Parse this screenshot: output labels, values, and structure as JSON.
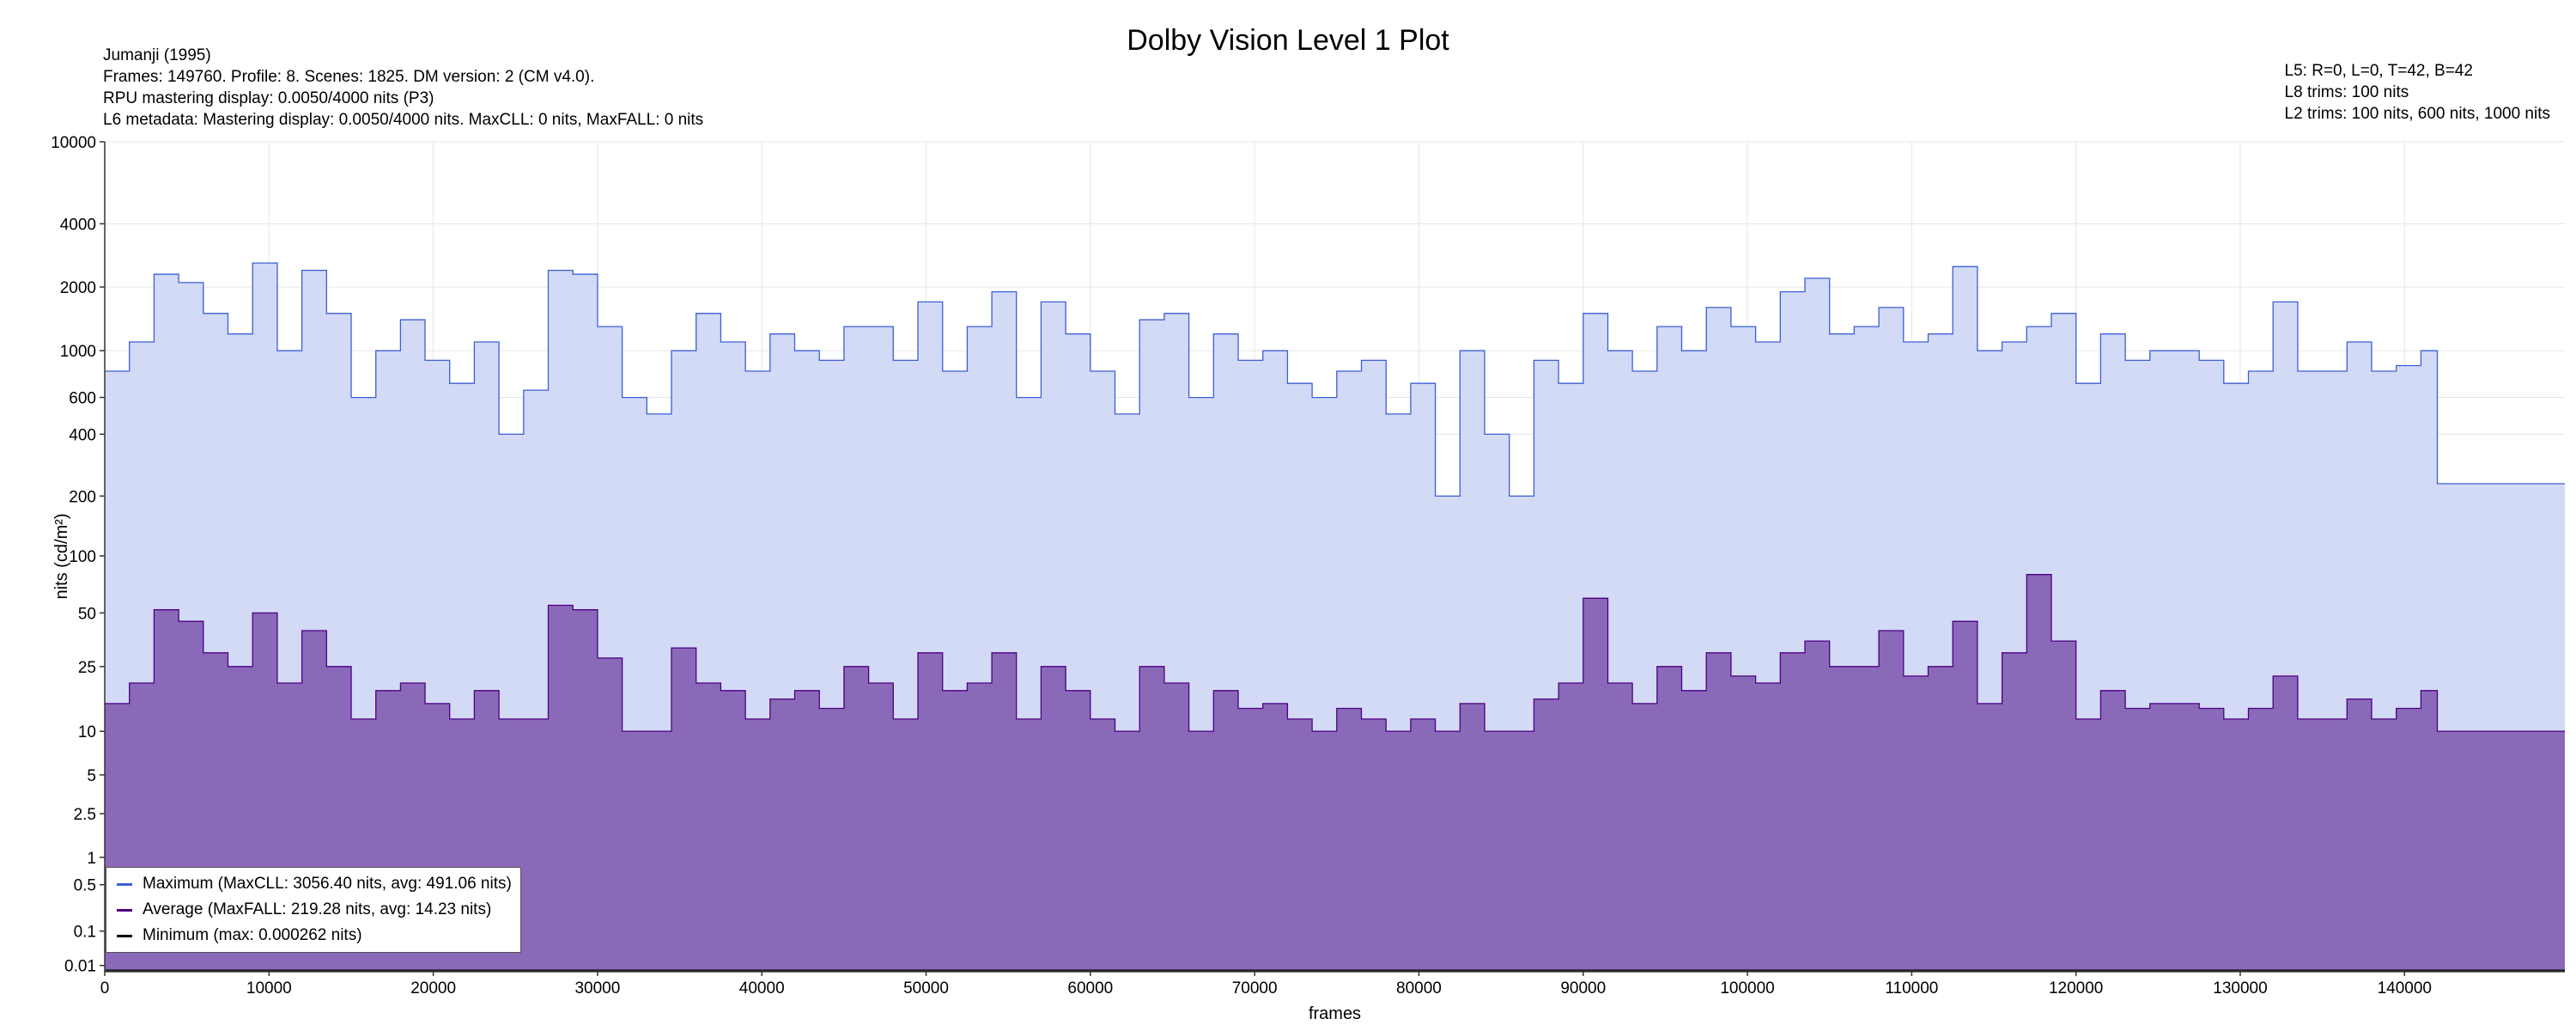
{
  "header": {
    "title": "Dolby Vision Level 1 Plot",
    "left_lines": [
      "Jumanji (1995)",
      "Frames: 149760. Profile: 8. Scenes: 1825. DM version: 2 (CM v4.0).",
      "RPU mastering display: 0.0050/4000 nits  (P3)",
      "L6 metadata: Mastering display: 0.0050/4000 nits. MaxCLL: 0 nits, MaxFALL: 0 nits"
    ],
    "right_lines": [
      "L5: R=0, L=0, T=42, B=42",
      "L8 trims: 100 nits",
      "L2 trims: 100 nits, 600 nits, 1000 nits"
    ]
  },
  "legend": {
    "items": [
      {
        "label": "Maximum (MaxCLL: 3056.40 nits, avg: 491.06 nits)",
        "color": "#3b5fd6"
      },
      {
        "label": "Average (MaxFALL: 219.28 nits, avg: 14.23 nits)",
        "color": "#4b0082"
      },
      {
        "label": "Minimum (max: 0.000262 nits)",
        "color": "#000000"
      }
    ]
  },
  "colors": {
    "max_line": "#3b5fd6",
    "max_fill": "#d3daf6",
    "avg_line": "#4b0082",
    "avg_fill": "#8b69b9",
    "min_line": "#000000",
    "grid": "#e6e6e6"
  },
  "chart_data": {
    "type": "area",
    "title": "Dolby Vision Level 1 Plot",
    "xlabel": "frames",
    "ylabel": "nits (cd/m²)",
    "x_scale": "linear",
    "y_scale": "PQ (perceptual quantizer)",
    "xlim": [
      0,
      149760
    ],
    "ylim": [
      0.005,
      10000
    ],
    "x_ticks": [
      0,
      10000,
      20000,
      30000,
      40000,
      50000,
      60000,
      70000,
      80000,
      90000,
      100000,
      110000,
      120000,
      130000,
      140000
    ],
    "y_ticks": [
      0.01,
      0.1,
      0.5,
      1,
      2.5,
      5,
      10,
      25,
      50,
      100,
      200,
      400,
      600,
      1000,
      2000,
      4000,
      10000
    ],
    "grid": true,
    "legend_position": "bottom-left",
    "series": [
      {
        "name": "Maximum (MaxCLL: 3056.40 nits, avg: 491.06 nits)",
        "x": [
          0,
          1500,
          3000,
          4500,
          6000,
          7500,
          9000,
          10500,
          12000,
          13500,
          15000,
          16500,
          18000,
          19500,
          21000,
          22500,
          24000,
          25500,
          27000,
          28500,
          30000,
          31500,
          33000,
          34500,
          36000,
          37500,
          39000,
          40500,
          42000,
          43500,
          45000,
          46500,
          48000,
          49500,
          51000,
          52500,
          54000,
          55500,
          57000,
          58500,
          60000,
          61500,
          63000,
          64500,
          66000,
          67500,
          69000,
          70500,
          72000,
          73500,
          75000,
          76500,
          78000,
          79500,
          81000,
          82500,
          84000,
          85500,
          87000,
          88500,
          90000,
          91500,
          93000,
          94500,
          96000,
          97500,
          99000,
          100500,
          102000,
          103500,
          105000,
          106500,
          108000,
          109500,
          111000,
          112500,
          114000,
          115500,
          117000,
          118500,
          120000,
          121500,
          123000,
          124500,
          126000,
          127500,
          129000,
          130500,
          132000,
          133500,
          135000,
          136500,
          138000,
          139500,
          141000,
          142000,
          149760
        ],
        "y": [
          800,
          1100,
          2300,
          2100,
          1500,
          1200,
          2600,
          1000,
          2400,
          1500,
          600,
          1000,
          1400,
          900,
          700,
          1100,
          400,
          650,
          2400,
          2300,
          1300,
          600,
          500,
          1000,
          1500,
          1100,
          800,
          1200,
          1000,
          900,
          1300,
          1300,
          900,
          1700,
          800,
          1300,
          1900,
          600,
          1700,
          1200,
          800,
          500,
          1400,
          1500,
          600,
          1200,
          900,
          1000,
          700,
          600,
          800,
          900,
          500,
          700,
          200,
          1000,
          400,
          200,
          900,
          700,
          1500,
          1000,
          800,
          1300,
          1000,
          1600,
          1300,
          1100,
          1900,
          2200,
          1200,
          1300,
          1600,
          1100,
          1200,
          2500,
          1000,
          1100,
          1300,
          1500,
          700,
          1200,
          900,
          1000,
          1000,
          900,
          700,
          800,
          1700,
          800,
          800,
          1100,
          800,
          850,
          1000,
          230,
          230
        ]
      },
      {
        "name": "Average (MaxFALL: 219.28 nits, avg: 14.23 nits)",
        "x": [
          0,
          1500,
          3000,
          4500,
          6000,
          7500,
          9000,
          10500,
          12000,
          13500,
          15000,
          16500,
          18000,
          19500,
          21000,
          22500,
          24000,
          25500,
          27000,
          28500,
          30000,
          31500,
          33000,
          34500,
          36000,
          37500,
          39000,
          40500,
          42000,
          43500,
          45000,
          46500,
          48000,
          49500,
          51000,
          52500,
          54000,
          55500,
          57000,
          58500,
          60000,
          61500,
          63000,
          64500,
          66000,
          67500,
          69000,
          70500,
          72000,
          73500,
          75000,
          76500,
          78000,
          79500,
          81000,
          82500,
          84000,
          85500,
          87000,
          88500,
          90000,
          91500,
          93000,
          94500,
          96000,
          97500,
          99000,
          100500,
          102000,
          103500,
          105000,
          106500,
          108000,
          109500,
          111000,
          112500,
          114000,
          115500,
          117000,
          118500,
          120000,
          121500,
          123000,
          124500,
          126000,
          127500,
          129000,
          130500,
          132000,
          133500,
          135000,
          136500,
          138000,
          139500,
          141000,
          142000,
          149760
        ],
        "y": [
          15,
          20,
          52,
          45,
          30,
          25,
          50,
          20,
          40,
          25,
          12,
          18,
          20,
          15,
          12,
          18,
          12,
          12,
          55,
          52,
          28,
          10,
          10,
          32,
          20,
          18,
          12,
          16,
          18,
          14,
          25,
          20,
          12,
          30,
          18,
          20,
          30,
          12,
          25,
          18,
          12,
          10,
          25,
          20,
          10,
          18,
          14,
          15,
          12,
          10,
          14,
          12,
          10,
          12,
          10,
          15,
          10,
          10,
          16,
          20,
          60,
          20,
          15,
          25,
          18,
          30,
          22,
          20,
          30,
          35,
          25,
          25,
          40,
          22,
          25,
          45,
          15,
          30,
          80,
          35,
          12,
          18,
          14,
          15,
          15,
          14,
          12,
          14,
          22,
          12,
          12,
          16,
          12,
          14,
          18,
          10,
          10
        ]
      },
      {
        "name": "Minimum (max: 0.000262 nits)",
        "x": [
          0,
          149760
        ],
        "y": [
          0.005,
          0.005
        ]
      }
    ]
  }
}
